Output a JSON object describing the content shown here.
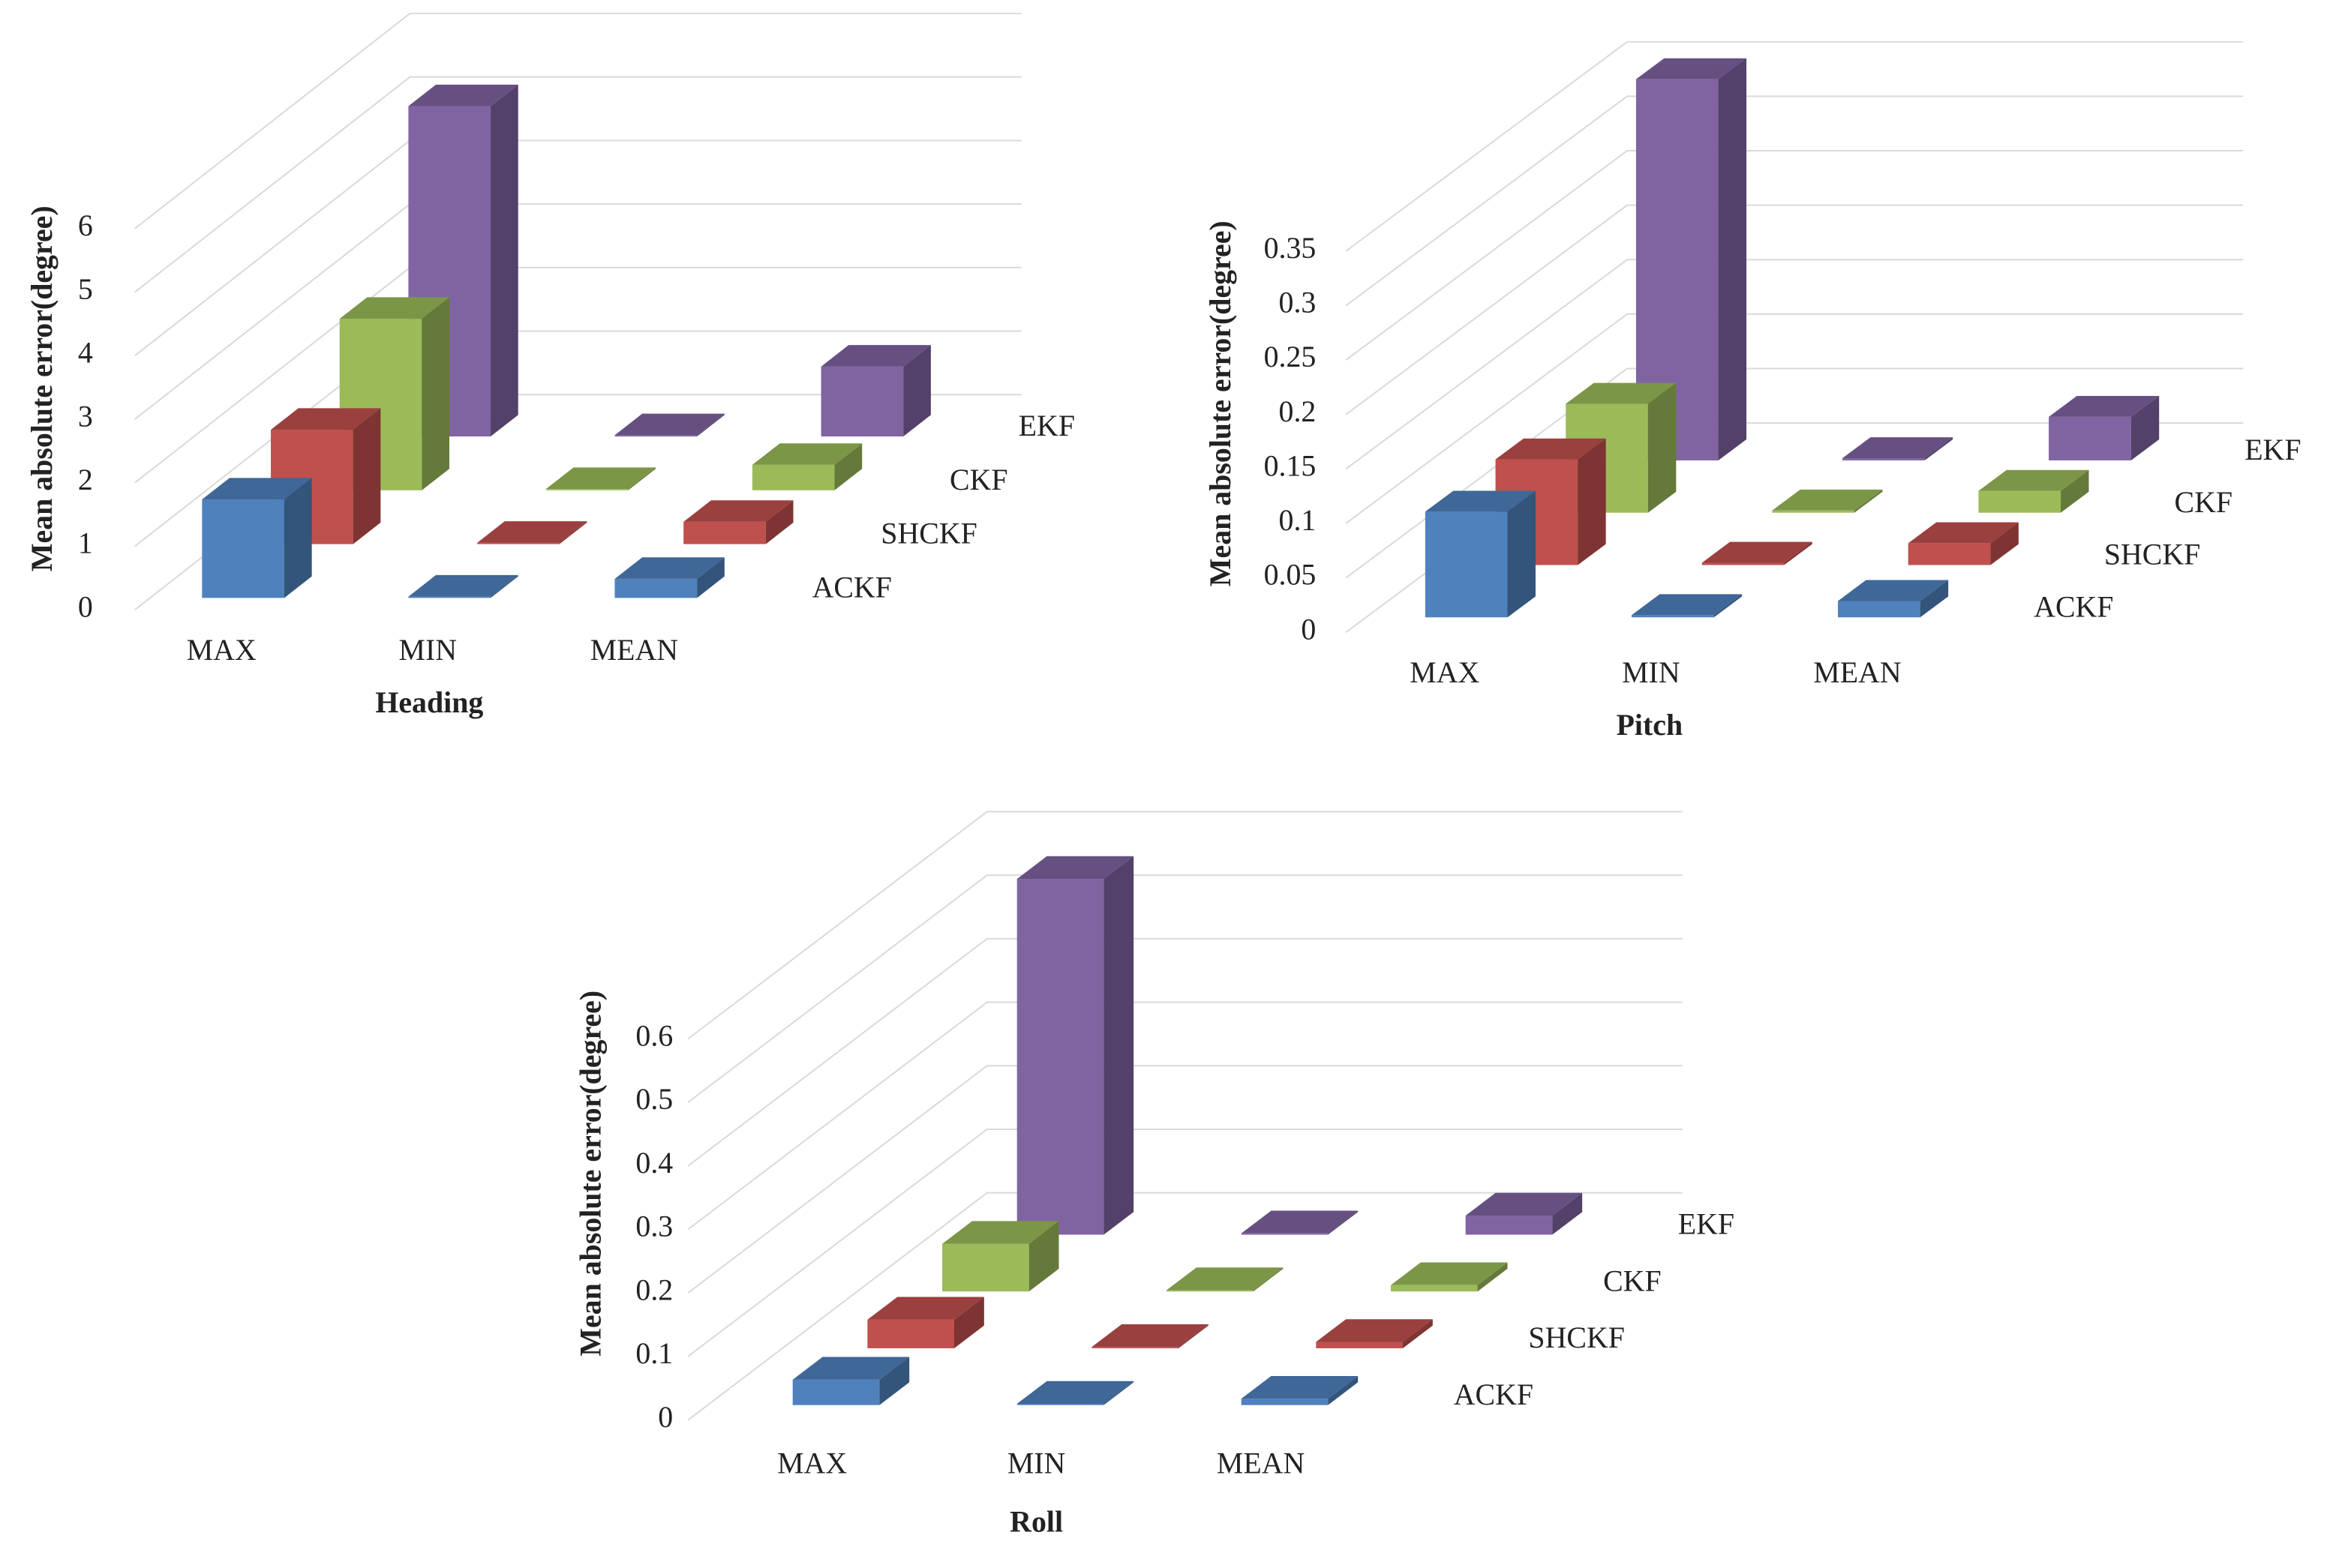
{
  "chart_data": [
    {
      "type": "bar",
      "title": "Heading",
      "ylabel": "Mean absolute error(degree)",
      "categories": [
        "MAX",
        "MIN",
        "MEAN"
      ],
      "series": [
        {
          "name": "ACKF",
          "color": "#4f81bd",
          "values": [
            1.55,
            0.02,
            0.3
          ]
        },
        {
          "name": "SHCKF",
          "color": "#c0504d",
          "values": [
            1.8,
            0.02,
            0.35
          ]
        },
        {
          "name": "CKF",
          "color": "#9bbb59",
          "values": [
            2.7,
            0.02,
            0.4
          ]
        },
        {
          "name": "EKF",
          "color": "#8064a2",
          "values": [
            5.2,
            0.02,
            1.1
          ]
        }
      ],
      "ylim": [
        0,
        6
      ],
      "yticks": [
        0,
        1,
        2,
        3,
        4,
        5,
        6
      ],
      "grid": true
    },
    {
      "type": "bar",
      "title": "Pitch",
      "ylabel": "Mean absolute error(degree)",
      "categories": [
        "MAX",
        "MIN",
        "MEAN"
      ],
      "series": [
        {
          "name": "ACKF",
          "color": "#4f81bd",
          "values": [
            0.097,
            0.002,
            0.015
          ]
        },
        {
          "name": "SHCKF",
          "color": "#c0504d",
          "values": [
            0.097,
            0.002,
            0.02
          ]
        },
        {
          "name": "CKF",
          "color": "#9bbb59",
          "values": [
            0.1,
            0.002,
            0.02
          ]
        },
        {
          "name": "EKF",
          "color": "#8064a2",
          "values": [
            0.35,
            0.002,
            0.04
          ]
        }
      ],
      "ylim": [
        0,
        0.35
      ],
      "yticks": [
        0,
        0.05,
        0.1,
        0.15,
        0.2,
        0.25,
        0.3,
        0.35
      ],
      "grid": true
    },
    {
      "type": "bar",
      "title": "Roll",
      "ylabel": "Mean absolute error(degree)",
      "categories": [
        "MAX",
        "MIN",
        "MEAN"
      ],
      "series": [
        {
          "name": "ACKF",
          "color": "#4f81bd",
          "values": [
            0.04,
            0.002,
            0.01
          ]
        },
        {
          "name": "SHCKF",
          "color": "#c0504d",
          "values": [
            0.045,
            0.002,
            0.01
          ]
        },
        {
          "name": "CKF",
          "color": "#9bbb59",
          "values": [
            0.075,
            0.002,
            0.01
          ]
        },
        {
          "name": "EKF",
          "color": "#8064a2",
          "values": [
            0.56,
            0.002,
            0.03
          ]
        }
      ],
      "ylim": [
        0,
        0.6
      ],
      "yticks": [
        0,
        0.1,
        0.2,
        0.3,
        0.4,
        0.5,
        0.6
      ],
      "grid": true
    }
  ]
}
